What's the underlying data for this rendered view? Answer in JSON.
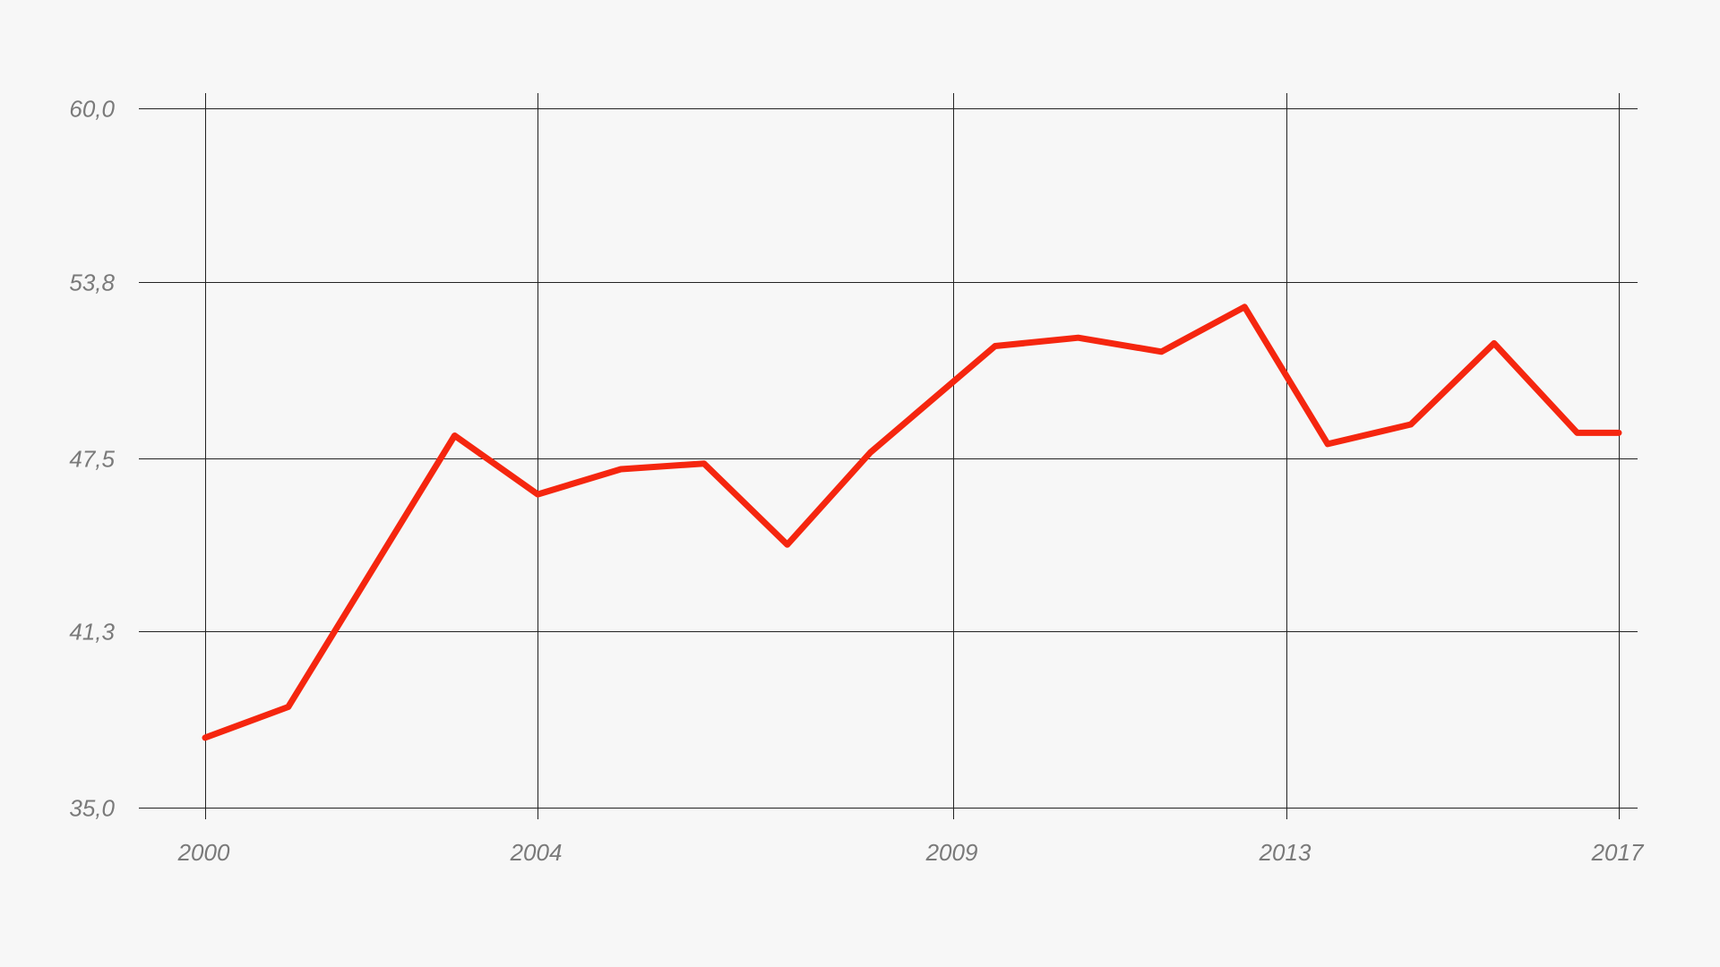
{
  "chart_data": {
    "type": "line",
    "title": "",
    "xlabel": "",
    "ylabel": "",
    "x_ticks": [
      "2000",
      "2004",
      "2009",
      "2013",
      "2017"
    ],
    "y_ticks": [
      "35,0",
      "41,3",
      "47,5",
      "53,8",
      "60,0"
    ],
    "xlim": [
      2000,
      2017
    ],
    "ylim": [
      35.0,
      60.0
    ],
    "grid": true,
    "legend": "none",
    "series": [
      {
        "color": "#f5260f",
        "x": [
          2000.0,
          2001.0,
          2003.0,
          2004.0,
          2005.0,
          2006.0,
          2007.0,
          2008.0,
          2009.5,
          2010.5,
          2011.5,
          2012.5,
          2013.5,
          2014.5,
          2015.5,
          2016.5,
          2017.0
        ],
        "y": [
          37.5,
          38.6,
          48.3,
          46.2,
          47.1,
          47.3,
          44.4,
          47.7,
          51.5,
          51.8,
          51.3,
          52.9,
          48.0,
          48.7,
          51.6,
          48.4,
          48.4
        ]
      }
    ]
  }
}
